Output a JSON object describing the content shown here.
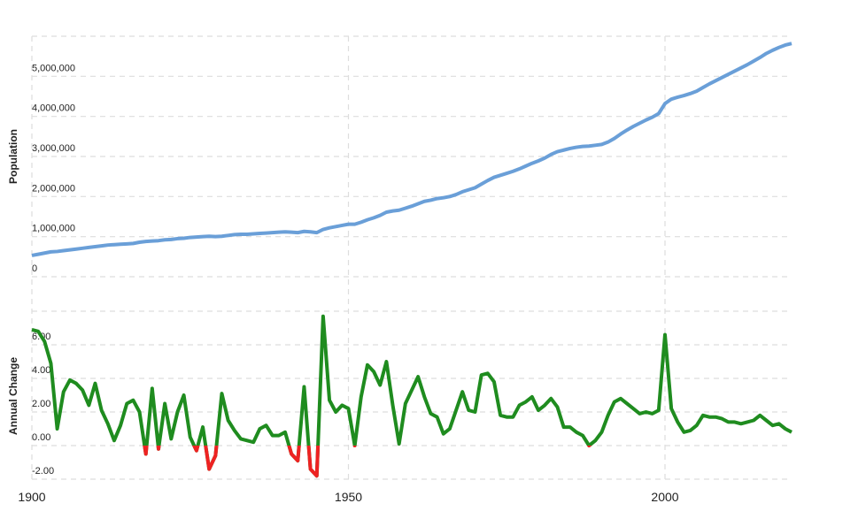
{
  "chart_data": [
    {
      "type": "line",
      "y_label": "Population",
      "x": [
        1900,
        1901,
        1902,
        1903,
        1904,
        1905,
        1906,
        1907,
        1908,
        1909,
        1910,
        1911,
        1912,
        1913,
        1914,
        1915,
        1916,
        1917,
        1918,
        1919,
        1920,
        1921,
        1922,
        1923,
        1924,
        1925,
        1926,
        1927,
        1928,
        1929,
        1930,
        1931,
        1932,
        1933,
        1934,
        1935,
        1936,
        1937,
        1938,
        1939,
        1940,
        1941,
        1942,
        1943,
        1944,
        1945,
        1946,
        1947,
        1948,
        1949,
        1950,
        1951,
        1952,
        1953,
        1954,
        1955,
        1956,
        1957,
        1958,
        1959,
        1960,
        1961,
        1962,
        1963,
        1964,
        1965,
        1966,
        1967,
        1968,
        1969,
        1970,
        1971,
        1972,
        1973,
        1974,
        1975,
        1976,
        1977,
        1978,
        1979,
        1980,
        1981,
        1982,
        1983,
        1984,
        1985,
        1986,
        1987,
        1988,
        1989,
        1990,
        1991,
        1992,
        1993,
        1994,
        1995,
        1996,
        1997,
        1998,
        1999,
        2000,
        2001,
        2002,
        2003,
        2004,
        2005,
        2006,
        2007,
        2008,
        2009,
        2010,
        2011,
        2012,
        2013,
        2014,
        2015,
        2016,
        2017,
        2018,
        2019,
        2020
      ],
      "series": [
        {
          "name": "Population",
          "color": "#6a9fd8",
          "values": [
            530000,
            560000,
            590000,
            620000,
            630000,
            650000,
            670000,
            690000,
            710000,
            730000,
            750000,
            770000,
            790000,
            800000,
            810000,
            820000,
            830000,
            860000,
            880000,
            890000,
            900000,
            920000,
            930000,
            950000,
            960000,
            980000,
            990000,
            1000000,
            1010000,
            1000000,
            1010000,
            1030000,
            1050000,
            1060000,
            1060000,
            1070000,
            1080000,
            1090000,
            1100000,
            1110000,
            1120000,
            1110000,
            1100000,
            1130000,
            1120000,
            1100000,
            1180000,
            1220000,
            1250000,
            1280000,
            1310000,
            1310000,
            1360000,
            1420000,
            1470000,
            1530000,
            1610000,
            1640000,
            1660000,
            1710000,
            1760000,
            1820000,
            1880000,
            1910000,
            1950000,
            1970000,
            2000000,
            2050000,
            2120000,
            2170000,
            2220000,
            2310000,
            2400000,
            2480000,
            2530000,
            2580000,
            2630000,
            2690000,
            2760000,
            2830000,
            2890000,
            2960000,
            3050000,
            3120000,
            3160000,
            3200000,
            3230000,
            3250000,
            3260000,
            3280000,
            3300000,
            3360000,
            3450000,
            3560000,
            3660000,
            3750000,
            3830000,
            3910000,
            3980000,
            4070000,
            4320000,
            4430000,
            4480000,
            4520000,
            4570000,
            4630000,
            4720000,
            4810000,
            4890000,
            4970000,
            5050000,
            5130000,
            5210000,
            5290000,
            5380000,
            5470000,
            5570000,
            5650000,
            5720000,
            5780000,
            5820000
          ]
        }
      ],
      "xlim": [
        1900,
        2020
      ],
      "xticks": [
        1900,
        1950,
        2000
      ],
      "ylim": [
        0,
        6000000
      ],
      "yticks": [
        0,
        {
          "value": 1000000,
          "label": "1,000,000"
        },
        {
          "value": 2000000,
          "label": "2,000,000"
        },
        {
          "value": 3000000,
          "label": "3,000,000"
        },
        {
          "value": 4000000,
          "label": "4,000,000"
        },
        {
          "value": 5000000,
          "label": "5,000,000"
        }
      ],
      "grid": true
    },
    {
      "type": "line",
      "y_label": "Annual Change",
      "x": [
        1900,
        1901,
        1902,
        1903,
        1904,
        1905,
        1906,
        1907,
        1908,
        1909,
        1910,
        1911,
        1912,
        1913,
        1914,
        1915,
        1916,
        1917,
        1918,
        1919,
        1920,
        1921,
        1922,
        1923,
        1924,
        1925,
        1926,
        1927,
        1928,
        1929,
        1930,
        1931,
        1932,
        1933,
        1934,
        1935,
        1936,
        1937,
        1938,
        1939,
        1940,
        1941,
        1942,
        1943,
        1944,
        1945,
        1946,
        1947,
        1948,
        1949,
        1950,
        1951,
        1952,
        1953,
        1954,
        1955,
        1956,
        1957,
        1958,
        1959,
        1960,
        1961,
        1962,
        1963,
        1964,
        1965,
        1966,
        1967,
        1968,
        1969,
        1970,
        1971,
        1972,
        1973,
        1974,
        1975,
        1976,
        1977,
        1978,
        1979,
        1980,
        1981,
        1982,
        1983,
        1984,
        1985,
        1986,
        1987,
        1988,
        1989,
        1990,
        1991,
        1992,
        1993,
        1994,
        1995,
        1996,
        1997,
        1998,
        1999,
        2000,
        2001,
        2002,
        2003,
        2004,
        2005,
        2006,
        2007,
        2008,
        2009,
        2010,
        2011,
        2012,
        2013,
        2014,
        2015,
        2016,
        2017,
        2018,
        2019,
        2020
      ],
      "series": [
        {
          "name": "Annual Change",
          "color": "#1f8c1f",
          "negative_color": "#ee2222",
          "values": [
            6.9,
            6.8,
            6.2,
            4.9,
            1.0,
            3.2,
            3.9,
            3.7,
            3.3,
            2.4,
            3.7,
            2.1,
            1.3,
            0.3,
            1.2,
            2.5,
            2.7,
            2.0,
            -0.5,
            3.4,
            -0.2,
            2.5,
            0.4,
            2.0,
            3.0,
            0.5,
            -0.3,
            1.1,
            -1.4,
            -0.6,
            3.1,
            1.5,
            0.9,
            0.4,
            0.3,
            0.2,
            1.0,
            1.2,
            0.6,
            0.6,
            0.8,
            -0.5,
            -0.9,
            3.5,
            -1.4,
            -1.8,
            7.7,
            2.7,
            2.0,
            2.4,
            2.2,
            0.0,
            2.9,
            4.8,
            4.4,
            3.6,
            5.0,
            2.4,
            0.1,
            2.5,
            3.3,
            4.1,
            2.9,
            1.9,
            1.7,
            0.7,
            1.0,
            2.1,
            3.2,
            2.1,
            2.0,
            4.2,
            4.3,
            3.8,
            1.8,
            1.7,
            1.7,
            2.4,
            2.6,
            2.9,
            2.1,
            2.4,
            2.8,
            2.3,
            1.1,
            1.1,
            0.8,
            0.6,
            0.0,
            0.3,
            0.8,
            1.8,
            2.6,
            2.8,
            2.5,
            2.2,
            1.9,
            2.0,
            1.9,
            2.1,
            6.6,
            2.2,
            1.4,
            0.8,
            0.9,
            1.2,
            1.8,
            1.7,
            1.7,
            1.6,
            1.4,
            1.4,
            1.3,
            1.4,
            1.5,
            1.8,
            1.5,
            1.2,
            1.3,
            1.0,
            0.8
          ]
        }
      ],
      "xlim": [
        1900,
        2020
      ],
      "xticks": [
        1900,
        1950,
        2000
      ],
      "ylim": [
        -2,
        8
      ],
      "yticks": [
        {
          "value": -2,
          "label": "-2.00"
        },
        {
          "value": 0,
          "label": "0.00"
        },
        {
          "value": 2,
          "label": "2.00"
        },
        {
          "value": 4,
          "label": "4.00"
        },
        {
          "value": 6,
          "label": "6.00"
        }
      ],
      "grid": true
    }
  ]
}
